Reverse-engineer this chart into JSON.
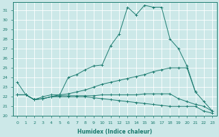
{
  "xlabel": "Humidex (Indice chaleur)",
  "bg_color": "#cce8e8",
  "line_color": "#1a7a6e",
  "xlim": [
    -0.5,
    23.5
  ],
  "ylim": [
    20.0,
    31.8
  ],
  "yticks": [
    20,
    21,
    22,
    23,
    24,
    25,
    26,
    27,
    28,
    29,
    30,
    31
  ],
  "xticks": [
    0,
    1,
    2,
    3,
    4,
    5,
    6,
    7,
    8,
    9,
    10,
    11,
    12,
    13,
    14,
    15,
    16,
    17,
    18,
    19,
    20,
    21,
    22,
    23
  ],
  "lines": [
    {
      "x": [
        0,
        1,
        2,
        3,
        4,
        5,
        6,
        7,
        8,
        9,
        10,
        11,
        12,
        13,
        14,
        15,
        16,
        17,
        18,
        19,
        20,
        21
      ],
      "y": [
        23.5,
        22.2,
        21.7,
        22.0,
        22.2,
        22.2,
        24.0,
        24.3,
        24.8,
        25.2,
        25.3,
        27.3,
        28.5,
        31.3,
        30.5,
        31.5,
        31.3,
        31.3,
        28.0,
        27.0,
        25.2,
        22.5
      ]
    },
    {
      "x": [
        0,
        1,
        2,
        3,
        4,
        5,
        6,
        7,
        8,
        9,
        10,
        11,
        12,
        13,
        14,
        15,
        16,
        17,
        18,
        19,
        20,
        21,
        22,
        23
      ],
      "y": [
        22.2,
        22.2,
        21.7,
        21.8,
        22.0,
        22.2,
        22.3,
        22.5,
        22.7,
        23.0,
        23.3,
        23.5,
        23.7,
        23.9,
        24.1,
        24.3,
        24.6,
        24.8,
        25.0,
        25.0,
        25.0,
        22.5,
        21.5,
        20.5
      ]
    },
    {
      "x": [
        0,
        1,
        2,
        3,
        4,
        5,
        6,
        7,
        8,
        9,
        10,
        11,
        12,
        13,
        14,
        15,
        16,
        17,
        18,
        19,
        20,
        21,
        22,
        23
      ],
      "y": [
        22.2,
        22.2,
        21.7,
        21.8,
        22.0,
        22.1,
        22.1,
        22.1,
        22.1,
        22.1,
        22.2,
        22.2,
        22.2,
        22.2,
        22.2,
        22.3,
        22.3,
        22.3,
        22.3,
        21.8,
        21.5,
        21.2,
        21.0,
        20.5
      ]
    },
    {
      "x": [
        0,
        1,
        2,
        3,
        4,
        5,
        6,
        7,
        8,
        9,
        10,
        11,
        12,
        13,
        14,
        15,
        16,
        17,
        18,
        19,
        20,
        21,
        22,
        23
      ],
      "y": [
        22.2,
        22.2,
        21.7,
        21.8,
        22.0,
        22.0,
        22.0,
        22.0,
        22.0,
        21.9,
        21.8,
        21.7,
        21.6,
        21.5,
        21.4,
        21.3,
        21.2,
        21.1,
        21.0,
        21.0,
        21.0,
        21.0,
        20.5,
        20.3
      ]
    }
  ]
}
